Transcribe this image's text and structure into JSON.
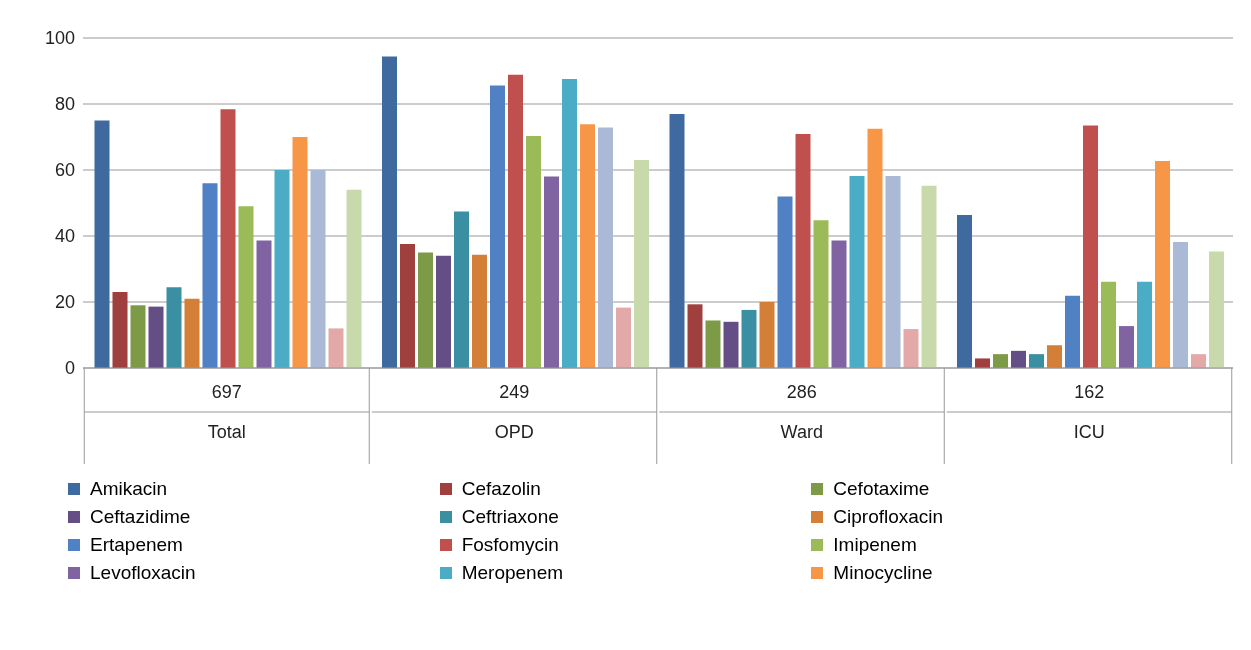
{
  "chart_data": {
    "type": "bar",
    "categories": [
      "697\nTotal",
      "249\nOPD",
      "286\nWard",
      "162\nICU"
    ],
    "ylim": [
      0,
      100
    ],
    "yticks": [
      0,
      20,
      40,
      60,
      80,
      100
    ],
    "grid": "y",
    "legend": "bottom",
    "series": [
      {
        "name": "Amikacin",
        "color": "#3f6aa0",
        "values": [
          75,
          94.4,
          77,
          46.4
        ]
      },
      {
        "name": "Cefazolin",
        "color": "#a0403e",
        "values": [
          23,
          37.6,
          19.3,
          2.9
        ]
      },
      {
        "name": "Cefotaxime",
        "color": "#7d9a46",
        "values": [
          19,
          35,
          14.4,
          4.2
        ]
      },
      {
        "name": "Ceftazidime",
        "color": "#644e86",
        "values": [
          18.6,
          34,
          14,
          5.2
        ]
      },
      {
        "name": "Ceftriaxone",
        "color": "#3a8fa3",
        "values": [
          24.5,
          47.4,
          17.6,
          4.2
        ]
      },
      {
        "name": "Ciprofloxacin",
        "color": "#d47f37",
        "values": [
          21,
          34.3,
          20,
          6.9
        ]
      },
      {
        "name": "Ertapenem",
        "color": "#4f81c4",
        "values": [
          56,
          85.6,
          52,
          21.9
        ]
      },
      {
        "name": "Fosfomycin",
        "color": "#c0504d",
        "values": [
          78.4,
          88.9,
          70.9,
          73.5
        ]
      },
      {
        "name": "Imipenem",
        "color": "#9bbb59",
        "values": [
          49,
          70.3,
          44.8,
          26.1
        ]
      },
      {
        "name": "Levofloxacin",
        "color": "#8064a2",
        "values": [
          38.6,
          58,
          38.6,
          12.7
        ]
      },
      {
        "name": "Meropenem",
        "color": "#4bacc6",
        "values": [
          60,
          87.6,
          58.2,
          26.1
        ]
      },
      {
        "name": "Minocycline",
        "color": "#f79646",
        "values": [
          70,
          73.9,
          72.5,
          62.7
        ]
      },
      {
        "color": "#a9b9d6",
        "values": [
          60,
          72.9,
          58.2,
          38.2
        ]
      },
      {
        "color": "#e2a9a8",
        "values": [
          12,
          18.3,
          11.8,
          4.2
        ]
      },
      {
        "color": "#c8d9ab",
        "values": [
          54,
          63,
          55.2,
          35.3
        ]
      }
    ]
  }
}
